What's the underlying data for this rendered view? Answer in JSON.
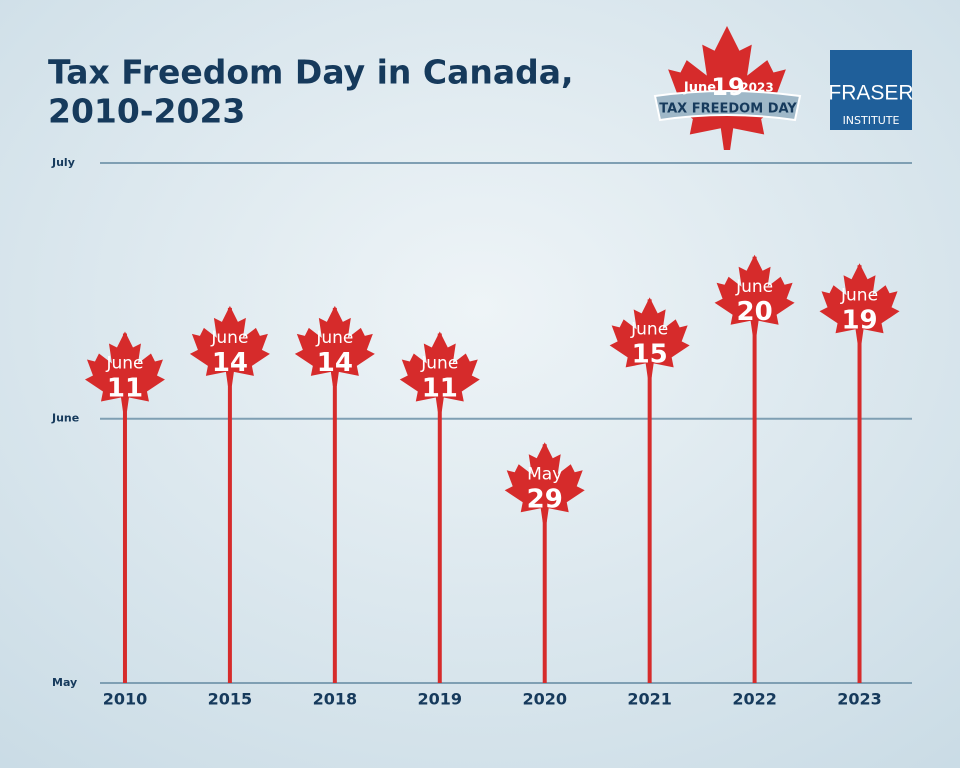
{
  "chart_data": {
    "type": "lollipop",
    "title": [
      "Tax Freedom Day in Canada,",
      "2010-2023"
    ],
    "categories": [
      "2010",
      "2015",
      "2018",
      "2019",
      "2020",
      "2021",
      "2022",
      "2023"
    ],
    "values": [
      41,
      44,
      44,
      41,
      28,
      45,
      50,
      49
    ],
    "value_labels": [
      "June 11",
      "June 14",
      "June 14",
      "June 11",
      "May 29",
      "June 15",
      "June 20",
      "June 19"
    ],
    "color": "#d62b2b",
    "ylim": [
      0,
      61
    ],
    "yticks": [
      {
        "value": 0,
        "label": "May"
      },
      {
        "value": 31,
        "label": "June"
      },
      {
        "value": 61,
        "label": "July"
      }
    ],
    "grid": true
  },
  "badge": {
    "month": "June",
    "day": "19",
    "year": "2023",
    "banner": "TAX FREEDOM DAY"
  },
  "logo": {
    "name": "FRASER",
    "sub": "INSTITUTE"
  }
}
